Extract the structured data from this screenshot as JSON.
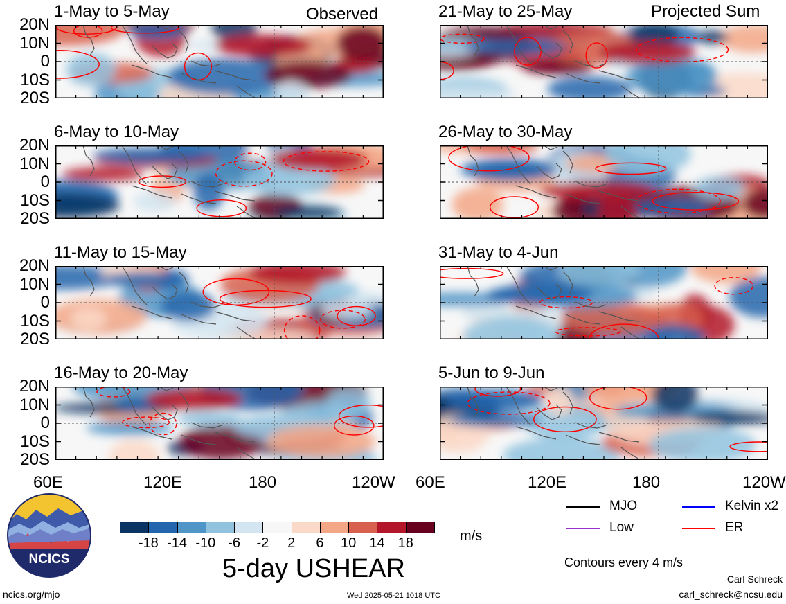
{
  "labels": {
    "observed": "Observed",
    "projected": "Projected Sum"
  },
  "panels": [
    {
      "title": "1-May to 5-May",
      "col": 0,
      "row": 0,
      "variant": 0
    },
    {
      "title": "6-May to 10-May",
      "col": 0,
      "row": 1,
      "variant": 1
    },
    {
      "title": "11-May to 15-May",
      "col": 0,
      "row": 2,
      "variant": 2
    },
    {
      "title": "16-May to 20-May",
      "col": 0,
      "row": 3,
      "variant": 3
    },
    {
      "title": "21-May to 25-May",
      "col": 1,
      "row": 0,
      "variant": 4
    },
    {
      "title": "26-May to 30-May",
      "col": 1,
      "row": 1,
      "variant": 5
    },
    {
      "title": "31-May to 4-Jun",
      "col": 1,
      "row": 2,
      "variant": 6
    },
    {
      "title": "5-Jun to 9-Jun",
      "col": 1,
      "row": 3,
      "variant": 7
    }
  ],
  "lat_labels": [
    "20N",
    "10N",
    "0",
    "10S",
    "20S"
  ],
  "lon_labels": [
    "60E",
    "120E",
    "180",
    "120W"
  ],
  "colorbar": {
    "colors": [
      "#0a3463",
      "#2466ad",
      "#4f95c7",
      "#91c3df",
      "#d2e5f0",
      "#f7f7f7",
      "#fbd9c8",
      "#f3a786",
      "#d8604e",
      "#b31529",
      "#67001f"
    ],
    "ticks": [
      "-18",
      "-14",
      "-10",
      "-6",
      "-2",
      "2",
      "6",
      "10",
      "14",
      "18"
    ],
    "units": "m/s",
    "title": "5-day USHEAR"
  },
  "legend": {
    "items": [
      {
        "label": "MJO",
        "color": "#000000"
      },
      {
        "label": "Kelvin x2",
        "color": "#0000ff"
      },
      {
        "label": "Low",
        "color": "#9932cc"
      },
      {
        "label": "ER",
        "color": "#ff0000"
      }
    ],
    "contour_note": "Contours every 4 m/s"
  },
  "logo": {
    "text": "NCICS"
  },
  "footer": {
    "url": "ncics.org/mjo",
    "timestamp": "Wed 2025-05-21 1018 UTC",
    "author": "Carl Schreck",
    "email": "carl_schreck@ncsu.edu"
  }
}
